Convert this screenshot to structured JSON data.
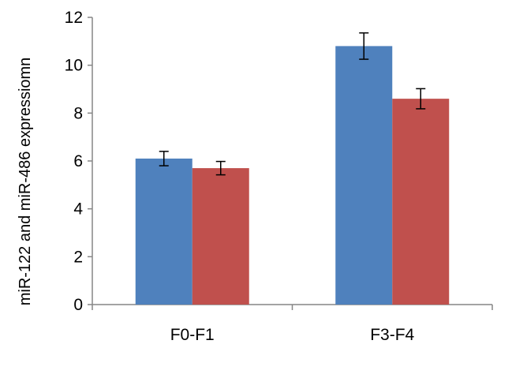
{
  "chart_data": {
    "type": "bar",
    "ylabel": "miR-122 and miR-486 expressiomn",
    "categories": [
      "F0-F1",
      "F3-F4"
    ],
    "series": [
      {
        "values": [
          6.1,
          10.8
        ],
        "errors": [
          0.3,
          0.55
        ],
        "color": "#4f81bd"
      },
      {
        "values": [
          5.7,
          8.6
        ],
        "errors": [
          0.28,
          0.42
        ],
        "color": "#c0504d"
      }
    ],
    "ylim": [
      0,
      12
    ],
    "yticks": [
      0,
      2,
      4,
      6,
      8,
      10,
      12
    ],
    "grid": false,
    "legend": false
  }
}
